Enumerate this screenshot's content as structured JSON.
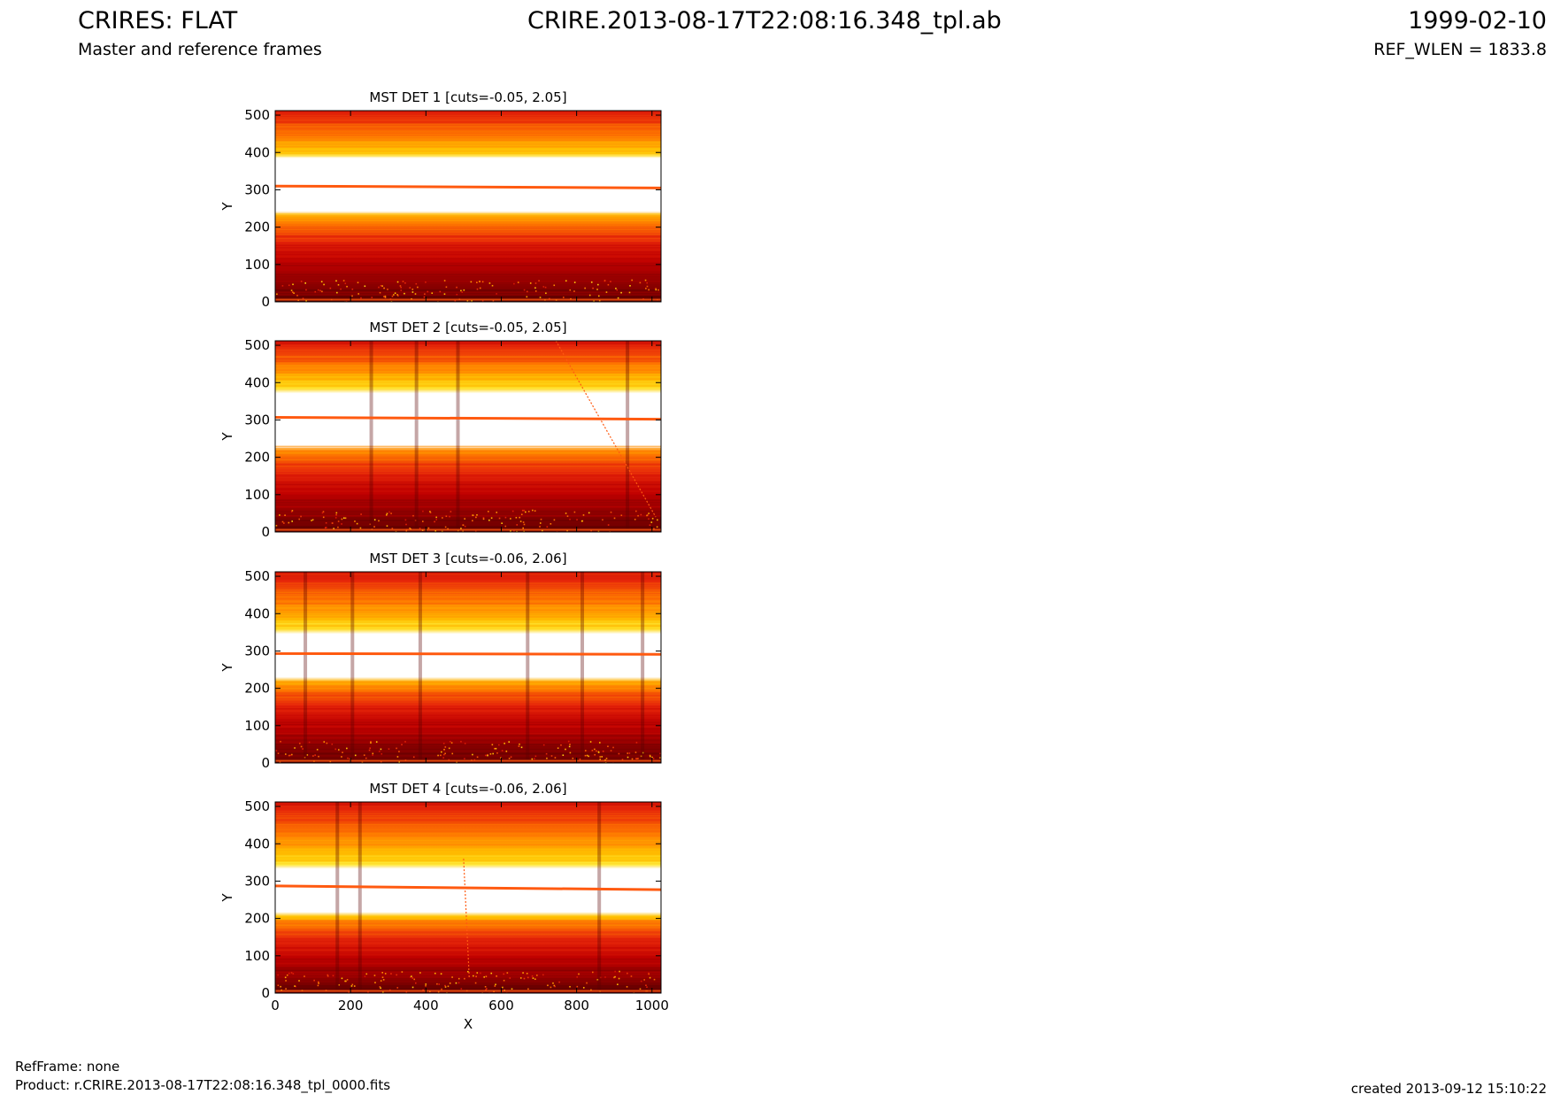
{
  "header": {
    "title_left": "CRIRES: FLAT",
    "title_center": "CRIRE.2013-08-17T22:08:16.348_tpl.ab",
    "title_right": "1999-02-10",
    "subtitle_left": "Master and reference frames",
    "subtitle_right": "REF_WLEN = 1833.8"
  },
  "footer": {
    "ref_frame": "RefFrame: none",
    "product": "Product: r.CRIRE.2013-08-17T22:08:16.348_tpl_0000.fits",
    "created": "created 2013-09-12 15:10:22"
  },
  "colors": {
    "colormap": [
      "#3b0000",
      "#7a0000",
      "#c00000",
      "#e8280a",
      "#ff7a00",
      "#ffc400",
      "#ffff60",
      "#ffffff"
    ],
    "band_line": "#ff5a10"
  },
  "chart_data": [
    {
      "type": "heatmap",
      "title": "MST DET 1 [cuts=-0.05, 2.05]",
      "xlabel": "",
      "ylabel": "Y",
      "xlim": [
        0,
        1024
      ],
      "ylim": [
        0,
        512
      ],
      "xticks": [
        0,
        200,
        400,
        600,
        800,
        1000
      ],
      "yticks": [
        0,
        100,
        200,
        300,
        400,
        500
      ],
      "show_xticklabels": false,
      "cuts": [
        -0.05,
        2.05
      ],
      "bright_band_y": [
        235,
        385
      ],
      "band_line_y": [
        310,
        305
      ],
      "dark_columns_x": [],
      "streaks": []
    },
    {
      "type": "heatmap",
      "title": "MST DET 2 [cuts=-0.05, 2.05]",
      "xlabel": "",
      "ylabel": "Y",
      "xlim": [
        0,
        1024
      ],
      "ylim": [
        0,
        512
      ],
      "xticks": [
        0,
        200,
        400,
        600,
        800,
        1000
      ],
      "yticks": [
        0,
        100,
        200,
        300,
        400,
        500
      ],
      "show_xticklabels": false,
      "cuts": [
        -0.05,
        2.05
      ],
      "bright_band_y": [
        230,
        380
      ],
      "band_line_y": [
        307,
        302
      ],
      "dark_columns_x": [
        255,
        375,
        485,
        935
      ],
      "streaks": [
        {
          "x1": 745,
          "y1": 512,
          "x2": 1010,
          "y2": 40
        }
      ]
    },
    {
      "type": "heatmap",
      "title": "MST DET 3 [cuts=-0.06, 2.06]",
      "xlabel": "",
      "ylabel": "Y",
      "xlim": [
        0,
        1024
      ],
      "ylim": [
        0,
        512
      ],
      "xticks": [
        0,
        200,
        400,
        600,
        800,
        1000
      ],
      "yticks": [
        0,
        100,
        200,
        300,
        400,
        500
      ],
      "show_xticklabels": false,
      "cuts": [
        -0.06,
        2.06
      ],
      "bright_band_y": [
        220,
        355
      ],
      "band_line_y": [
        293,
        291
      ],
      "dark_columns_x": [
        80,
        205,
        385,
        670,
        815,
        975
      ],
      "streaks": []
    },
    {
      "type": "heatmap",
      "title": "MST DET 4 [cuts=-0.06, 2.06]",
      "xlabel": "X",
      "ylabel": "Y",
      "xlim": [
        0,
        1024
      ],
      "ylim": [
        0,
        512
      ],
      "xticks": [
        0,
        200,
        400,
        600,
        800,
        1000
      ],
      "yticks": [
        0,
        100,
        200,
        300,
        400,
        500
      ],
      "show_xticklabels": true,
      "cuts": [
        -0.06,
        2.06
      ],
      "bright_band_y": [
        205,
        340
      ],
      "band_line_y": [
        287,
        277
      ],
      "dark_columns_x": [
        165,
        225,
        860
      ],
      "streaks": [
        {
          "x1": 500,
          "y1": 360,
          "x2": 515,
          "y2": 40
        }
      ]
    }
  ]
}
